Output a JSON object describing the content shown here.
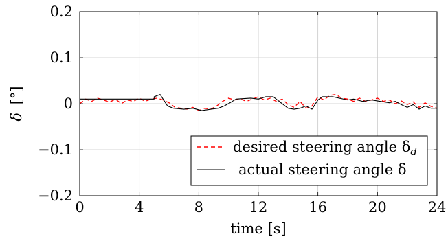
{
  "chart_data": {
    "type": "line",
    "title": "",
    "xlabel": "time [s]",
    "ylabel_symbol": "δ",
    "ylabel_unit": "[°]",
    "xlim": [
      0,
      24
    ],
    "ylim": [
      -0.2,
      0.2
    ],
    "x_ticks": [
      0,
      4,
      8,
      12,
      16,
      20,
      24
    ],
    "x_tick_labels": [
      "0",
      "4",
      "8",
      "12",
      "16",
      "20",
      "24"
    ],
    "y_ticks": [
      -0.2,
      -0.1,
      0,
      0.1,
      0.2
    ],
    "y_tick_labels": [
      "−0.2",
      "−0.1",
      "0",
      "0.1",
      "0.2"
    ],
    "grid": true,
    "legend_position": "bottom-right",
    "series": [
      {
        "name": "desired steering angle δd",
        "legend_main": "desired steering angle δ",
        "legend_sub": "d",
        "color": "#ff0000",
        "style": "dashed",
        "x": [
          0,
          0.4,
          0.8,
          1.2,
          1.6,
          2.0,
          2.4,
          2.8,
          3.2,
          3.6,
          4.0,
          4.4,
          4.8,
          5.2,
          5.6,
          6.0,
          6.4,
          6.8,
          7.2,
          7.6,
          8.0,
          8.4,
          8.8,
          9.2,
          9.6,
          10.0,
          10.4,
          10.8,
          11.2,
          11.6,
          12.0,
          12.4,
          12.8,
          13.2,
          13.6,
          14.0,
          14.4,
          14.8,
          15.2,
          15.6,
          16.0,
          16.4,
          16.8,
          17.2,
          17.6,
          18.0,
          18.4,
          18.8,
          19.2,
          19.6,
          20.0,
          20.4,
          20.8,
          21.2,
          21.6,
          22.0,
          22.4,
          22.8,
          23.2,
          23.6,
          24.0
        ],
        "y": [
          0.0,
          0.01,
          0.005,
          0.012,
          0.008,
          0.003,
          0.01,
          0.0,
          0.008,
          0.005,
          0.012,
          0.005,
          0.01,
          0.012,
          0.008,
          0.002,
          -0.008,
          -0.01,
          -0.012,
          -0.008,
          -0.015,
          -0.01,
          -0.012,
          -0.005,
          0.005,
          0.012,
          0.008,
          0.01,
          0.005,
          0.01,
          0.015,
          0.008,
          0.012,
          0.005,
          0.01,
          -0.002,
          -0.008,
          0.005,
          -0.01,
          -0.005,
          0.015,
          0.008,
          0.018,
          0.02,
          0.012,
          0.01,
          0.005,
          0.012,
          0.005,
          0.008,
          0.012,
          0.005,
          0.008,
          0.0,
          0.006,
          -0.002,
          0.004,
          -0.008,
          0.002,
          -0.006,
          -0.01
        ]
      },
      {
        "name": "actual steering angle δ",
        "legend_main": "actual steering angle δ",
        "legend_sub": "",
        "color": "#000000",
        "style": "solid",
        "x": [
          0,
          5.0,
          5.0,
          5.4,
          5.6,
          5.9,
          6.3,
          7.0,
          7.6,
          8.2,
          8.8,
          9.3,
          9.7,
          10.1,
          10.5,
          11.5,
          12.0,
          12.5,
          13.0,
          14.0,
          14.4,
          14.8,
          15.2,
          15.6,
          16.0,
          16.3,
          17.0,
          18.0,
          18.4,
          19.0,
          19.6,
          20.2,
          20.8,
          21.2,
          21.6,
          22.0,
          22.4,
          22.8,
          23.2,
          23.6,
          24.0
        ],
        "y": [
          0.01,
          0.01,
          0.015,
          0.02,
          0.01,
          -0.005,
          -0.01,
          -0.012,
          -0.01,
          -0.015,
          -0.012,
          -0.01,
          -0.005,
          0.002,
          0.01,
          0.012,
          0.01,
          0.015,
          0.015,
          -0.01,
          -0.012,
          -0.01,
          -0.005,
          -0.012,
          0.008,
          0.015,
          0.015,
          0.008,
          0.01,
          0.005,
          0.008,
          0.005,
          0.002,
          0.005,
          -0.002,
          -0.008,
          -0.002,
          -0.012,
          -0.005,
          -0.01,
          -0.01
        ]
      }
    ]
  }
}
